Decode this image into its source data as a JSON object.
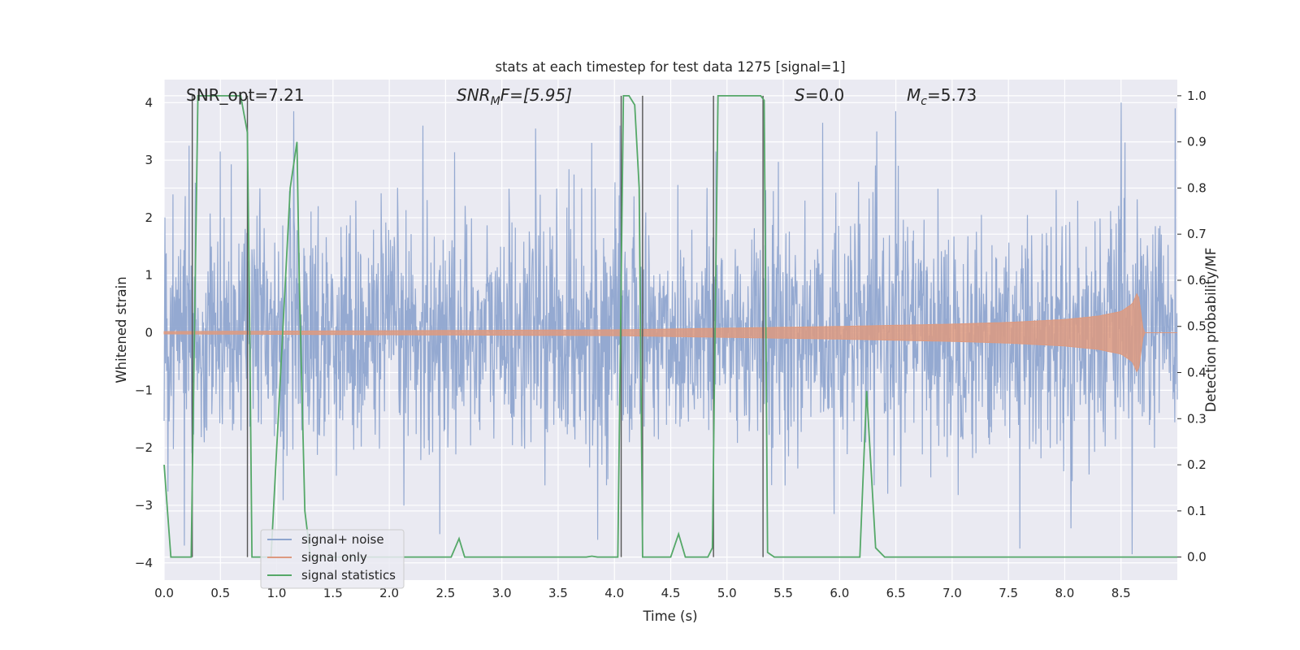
{
  "chart_data": {
    "type": "line",
    "title": "stats at each timestep for test data 1275 [signal=1]",
    "xlabel": "Time (s)",
    "ylabel": "Whitened strain",
    "ylabel_right": "Detection probability/MF",
    "xlim": [
      0.0,
      9.0
    ],
    "ylim": [
      -4.3,
      4.4
    ],
    "ylim_right": [
      -0.05,
      1.035
    ],
    "xticks": [
      "0.0",
      "0.5",
      "1.0",
      "1.5",
      "2.0",
      "2.5",
      "3.0",
      "3.5",
      "4.0",
      "4.5",
      "5.0",
      "5.5",
      "6.0",
      "6.5",
      "7.0",
      "7.5",
      "8.0",
      "8.5"
    ],
    "yticks": [
      "4",
      "3",
      "2",
      "1",
      "0",
      "−1",
      "−2",
      "−3",
      "−4"
    ],
    "yticks_right": [
      "1.0",
      "0.9",
      "0.8",
      "0.7",
      "0.6",
      "0.5",
      "0.4",
      "0.3",
      "0.2",
      "0.1",
      "0.0"
    ],
    "annotations": {
      "snr_opt": "SNR_opt=7.21",
      "snr_mf_main": "SNR",
      "snr_mf_sub": "M",
      "snr_mf_rest": "F=[5.95]",
      "s_main": "S",
      "s_rest": "=0.0",
      "mc_main": "M",
      "mc_sub": "c",
      "mc_rest": "=5.73"
    },
    "grid": true,
    "legend_position": "lower-left",
    "series": [
      {
        "name": "signal+ noise",
        "color": "#8fa5cf",
        "axis": "left",
        "description": "whitened noisy strain, approx. Gaussian with std ~1 and peaks up to about ±3.5",
        "approx_std": 1.0,
        "peak_points": [
          [
            0.22,
            3.25
          ],
          [
            0.5,
            3.15
          ],
          [
            1.15,
            3.85
          ],
          [
            2.3,
            3.6
          ],
          [
            3.3,
            3.55
          ],
          [
            3.8,
            3.3
          ],
          [
            4.05,
            3.6
          ],
          [
            4.9,
            3.15
          ],
          [
            5.85,
            3.65
          ],
          [
            6.5,
            3.85
          ],
          [
            8.5,
            4.0
          ],
          [
            8.98,
            3.9
          ],
          [
            0.18,
            -3.7
          ],
          [
            2.45,
            -3.5
          ],
          [
            3.85,
            -3.6
          ],
          [
            5.95,
            -3.15
          ],
          [
            7.6,
            -3.75
          ],
          [
            8.6,
            -3.85
          ]
        ]
      },
      {
        "name": "signal only",
        "color": "#dd9a80",
        "axis": "left",
        "description": "chirp signal envelope growing until merger",
        "envelope": {
          "x": [
            0.0,
            4.0,
            5.0,
            6.0,
            7.0,
            7.5,
            8.0,
            8.3,
            8.5,
            8.6,
            8.65,
            8.68,
            8.7
          ],
          "amp": [
            0.02,
            0.05,
            0.08,
            0.11,
            0.15,
            0.18,
            0.23,
            0.29,
            0.37,
            0.5,
            0.72,
            0.3,
            0.0
          ]
        }
      },
      {
        "name": "signal statistics",
        "color": "#55a868",
        "axis": "right",
        "x": [
          0.0,
          0.06,
          0.22,
          0.24,
          0.3,
          0.68,
          0.74,
          0.76,
          0.78,
          0.95,
          1.12,
          1.18,
          1.2,
          1.25,
          1.3,
          2.55,
          2.62,
          2.67,
          3.75,
          3.8,
          3.85,
          4.03,
          4.08,
          4.13,
          4.18,
          4.22,
          4.25,
          4.28,
          4.45,
          4.5,
          4.57,
          4.63,
          4.83,
          4.87,
          4.92,
          4.95,
          5.3,
          5.33,
          5.36,
          5.42,
          6.18,
          6.24,
          6.32,
          6.4,
          9.0
        ],
        "y": [
          0.2,
          0.0,
          0.0,
          0.0,
          1.0,
          1.0,
          0.92,
          0.5,
          0.0,
          0.0,
          0.8,
          0.9,
          0.6,
          0.1,
          0.0,
          0.0,
          0.04,
          0.0,
          0.0,
          0.002,
          0.0,
          0.0,
          1.0,
          1.0,
          0.98,
          0.8,
          0.0,
          0.0,
          0.0,
          0.0,
          0.05,
          0.0,
          0.0,
          0.02,
          1.0,
          1.0,
          1.0,
          0.99,
          0.01,
          0.0,
          0.0,
          0.36,
          0.02,
          0.0,
          0.0
        ]
      }
    ],
    "vertical_lines": {
      "color": "#555555",
      "x": [
        0.25,
        0.74,
        4.06,
        4.25,
        4.88,
        5.32
      ]
    }
  }
}
